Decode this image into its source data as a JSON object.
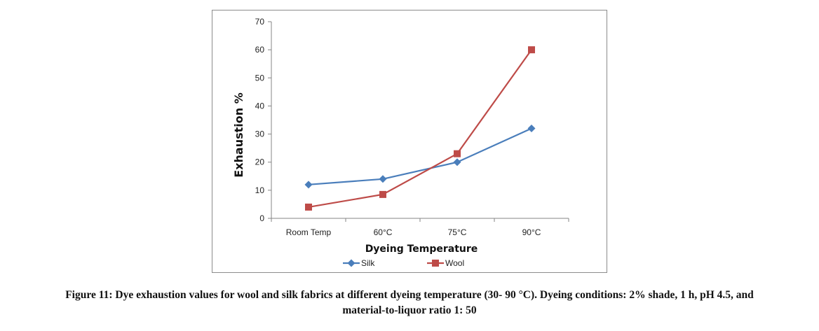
{
  "chart_data": {
    "type": "line",
    "categories": [
      "Room Temp",
      "60°C",
      "75°C",
      "90°C"
    ],
    "series": [
      {
        "name": "Silk",
        "values": [
          12,
          14,
          20,
          32
        ],
        "color": "#4a7ebb",
        "marker": "diamond"
      },
      {
        "name": "Wool",
        "values": [
          4,
          8.5,
          23,
          60
        ],
        "color": "#be4b48",
        "marker": "square"
      }
    ],
    "xlabel": "Dyeing Temperature",
    "ylabel": "Exhaustion %",
    "ylim": [
      0,
      70
    ],
    "yticks": [
      0,
      10,
      20,
      30,
      40,
      50,
      60,
      70
    ],
    "grid": false,
    "legend_position": "bottom"
  },
  "caption": {
    "line1": "Figure 11: Dye exhaustion values for wool and silk fabrics at different dyeing temperature (30- 90 °C). Dyeing conditions: 2% shade, 1 h, pH 4.5, and",
    "line2": "material-to-liquor ratio 1: 50"
  }
}
